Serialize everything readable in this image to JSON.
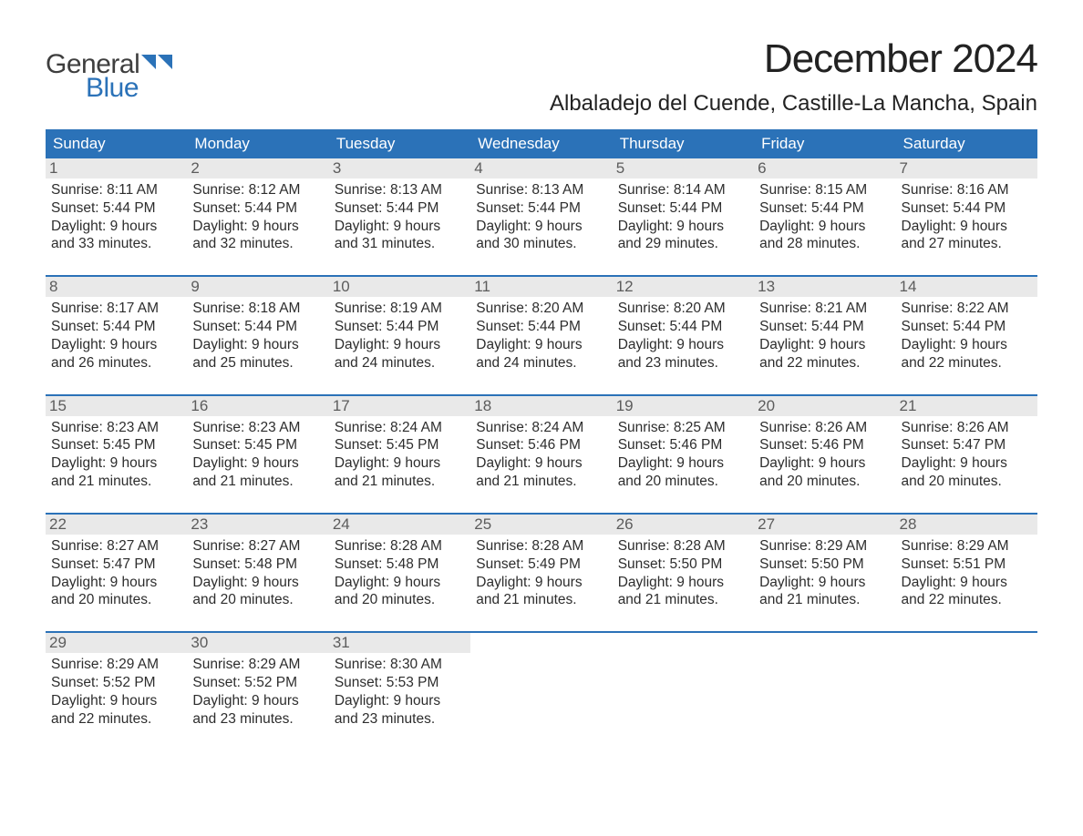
{
  "brand": {
    "general": "General",
    "blue": "Blue",
    "accent": "#2b72b8"
  },
  "title": "December 2024",
  "location": "Albaladejo del Cuende, Castille-La Mancha, Spain",
  "weekdays": [
    "Sunday",
    "Monday",
    "Tuesday",
    "Wednesday",
    "Thursday",
    "Friday",
    "Saturday"
  ],
  "colors": {
    "header_bg": "#2b72b8",
    "header_text": "#ffffff",
    "week_rule": "#2b72b8",
    "daynum_bg": "#e9e9e9",
    "daynum_text": "#5c5c5c",
    "body_text": "#2d2d2d",
    "page_bg": "#ffffff"
  },
  "typography": {
    "title_fontsize": 44,
    "location_fontsize": 24,
    "weekday_fontsize": 17,
    "daynum_fontsize": 17,
    "body_fontsize": 15.5
  },
  "weeks": [
    [
      {
        "n": "1",
        "sr": "Sunrise: 8:11 AM",
        "ss": "Sunset: 5:44 PM",
        "d1": "Daylight: 9 hours",
        "d2": "and 33 minutes."
      },
      {
        "n": "2",
        "sr": "Sunrise: 8:12 AM",
        "ss": "Sunset: 5:44 PM",
        "d1": "Daylight: 9 hours",
        "d2": "and 32 minutes."
      },
      {
        "n": "3",
        "sr": "Sunrise: 8:13 AM",
        "ss": "Sunset: 5:44 PM",
        "d1": "Daylight: 9 hours",
        "d2": "and 31 minutes."
      },
      {
        "n": "4",
        "sr": "Sunrise: 8:13 AM",
        "ss": "Sunset: 5:44 PM",
        "d1": "Daylight: 9 hours",
        "d2": "and 30 minutes."
      },
      {
        "n": "5",
        "sr": "Sunrise: 8:14 AM",
        "ss": "Sunset: 5:44 PM",
        "d1": "Daylight: 9 hours",
        "d2": "and 29 minutes."
      },
      {
        "n": "6",
        "sr": "Sunrise: 8:15 AM",
        "ss": "Sunset: 5:44 PM",
        "d1": "Daylight: 9 hours",
        "d2": "and 28 minutes."
      },
      {
        "n": "7",
        "sr": "Sunrise: 8:16 AM",
        "ss": "Sunset: 5:44 PM",
        "d1": "Daylight: 9 hours",
        "d2": "and 27 minutes."
      }
    ],
    [
      {
        "n": "8",
        "sr": "Sunrise: 8:17 AM",
        "ss": "Sunset: 5:44 PM",
        "d1": "Daylight: 9 hours",
        "d2": "and 26 minutes."
      },
      {
        "n": "9",
        "sr": "Sunrise: 8:18 AM",
        "ss": "Sunset: 5:44 PM",
        "d1": "Daylight: 9 hours",
        "d2": "and 25 minutes."
      },
      {
        "n": "10",
        "sr": "Sunrise: 8:19 AM",
        "ss": "Sunset: 5:44 PM",
        "d1": "Daylight: 9 hours",
        "d2": "and 24 minutes."
      },
      {
        "n": "11",
        "sr": "Sunrise: 8:20 AM",
        "ss": "Sunset: 5:44 PM",
        "d1": "Daylight: 9 hours",
        "d2": "and 24 minutes."
      },
      {
        "n": "12",
        "sr": "Sunrise: 8:20 AM",
        "ss": "Sunset: 5:44 PM",
        "d1": "Daylight: 9 hours",
        "d2": "and 23 minutes."
      },
      {
        "n": "13",
        "sr": "Sunrise: 8:21 AM",
        "ss": "Sunset: 5:44 PM",
        "d1": "Daylight: 9 hours",
        "d2": "and 22 minutes."
      },
      {
        "n": "14",
        "sr": "Sunrise: 8:22 AM",
        "ss": "Sunset: 5:44 PM",
        "d1": "Daylight: 9 hours",
        "d2": "and 22 minutes."
      }
    ],
    [
      {
        "n": "15",
        "sr": "Sunrise: 8:23 AM",
        "ss": "Sunset: 5:45 PM",
        "d1": "Daylight: 9 hours",
        "d2": "and 21 minutes."
      },
      {
        "n": "16",
        "sr": "Sunrise: 8:23 AM",
        "ss": "Sunset: 5:45 PM",
        "d1": "Daylight: 9 hours",
        "d2": "and 21 minutes."
      },
      {
        "n": "17",
        "sr": "Sunrise: 8:24 AM",
        "ss": "Sunset: 5:45 PM",
        "d1": "Daylight: 9 hours",
        "d2": "and 21 minutes."
      },
      {
        "n": "18",
        "sr": "Sunrise: 8:24 AM",
        "ss": "Sunset: 5:46 PM",
        "d1": "Daylight: 9 hours",
        "d2": "and 21 minutes."
      },
      {
        "n": "19",
        "sr": "Sunrise: 8:25 AM",
        "ss": "Sunset: 5:46 PM",
        "d1": "Daylight: 9 hours",
        "d2": "and 20 minutes."
      },
      {
        "n": "20",
        "sr": "Sunrise: 8:26 AM",
        "ss": "Sunset: 5:46 PM",
        "d1": "Daylight: 9 hours",
        "d2": "and 20 minutes."
      },
      {
        "n": "21",
        "sr": "Sunrise: 8:26 AM",
        "ss": "Sunset: 5:47 PM",
        "d1": "Daylight: 9 hours",
        "d2": "and 20 minutes."
      }
    ],
    [
      {
        "n": "22",
        "sr": "Sunrise: 8:27 AM",
        "ss": "Sunset: 5:47 PM",
        "d1": "Daylight: 9 hours",
        "d2": "and 20 minutes."
      },
      {
        "n": "23",
        "sr": "Sunrise: 8:27 AM",
        "ss": "Sunset: 5:48 PM",
        "d1": "Daylight: 9 hours",
        "d2": "and 20 minutes."
      },
      {
        "n": "24",
        "sr": "Sunrise: 8:28 AM",
        "ss": "Sunset: 5:48 PM",
        "d1": "Daylight: 9 hours",
        "d2": "and 20 minutes."
      },
      {
        "n": "25",
        "sr": "Sunrise: 8:28 AM",
        "ss": "Sunset: 5:49 PM",
        "d1": "Daylight: 9 hours",
        "d2": "and 21 minutes."
      },
      {
        "n": "26",
        "sr": "Sunrise: 8:28 AM",
        "ss": "Sunset: 5:50 PM",
        "d1": "Daylight: 9 hours",
        "d2": "and 21 minutes."
      },
      {
        "n": "27",
        "sr": "Sunrise: 8:29 AM",
        "ss": "Sunset: 5:50 PM",
        "d1": "Daylight: 9 hours",
        "d2": "and 21 minutes."
      },
      {
        "n": "28",
        "sr": "Sunrise: 8:29 AM",
        "ss": "Sunset: 5:51 PM",
        "d1": "Daylight: 9 hours",
        "d2": "and 22 minutes."
      }
    ],
    [
      {
        "n": "29",
        "sr": "Sunrise: 8:29 AM",
        "ss": "Sunset: 5:52 PM",
        "d1": "Daylight: 9 hours",
        "d2": "and 22 minutes."
      },
      {
        "n": "30",
        "sr": "Sunrise: 8:29 AM",
        "ss": "Sunset: 5:52 PM",
        "d1": "Daylight: 9 hours",
        "d2": "and 23 minutes."
      },
      {
        "n": "31",
        "sr": "Sunrise: 8:30 AM",
        "ss": "Sunset: 5:53 PM",
        "d1": "Daylight: 9 hours",
        "d2": "and 23 minutes."
      },
      null,
      null,
      null,
      null
    ]
  ]
}
